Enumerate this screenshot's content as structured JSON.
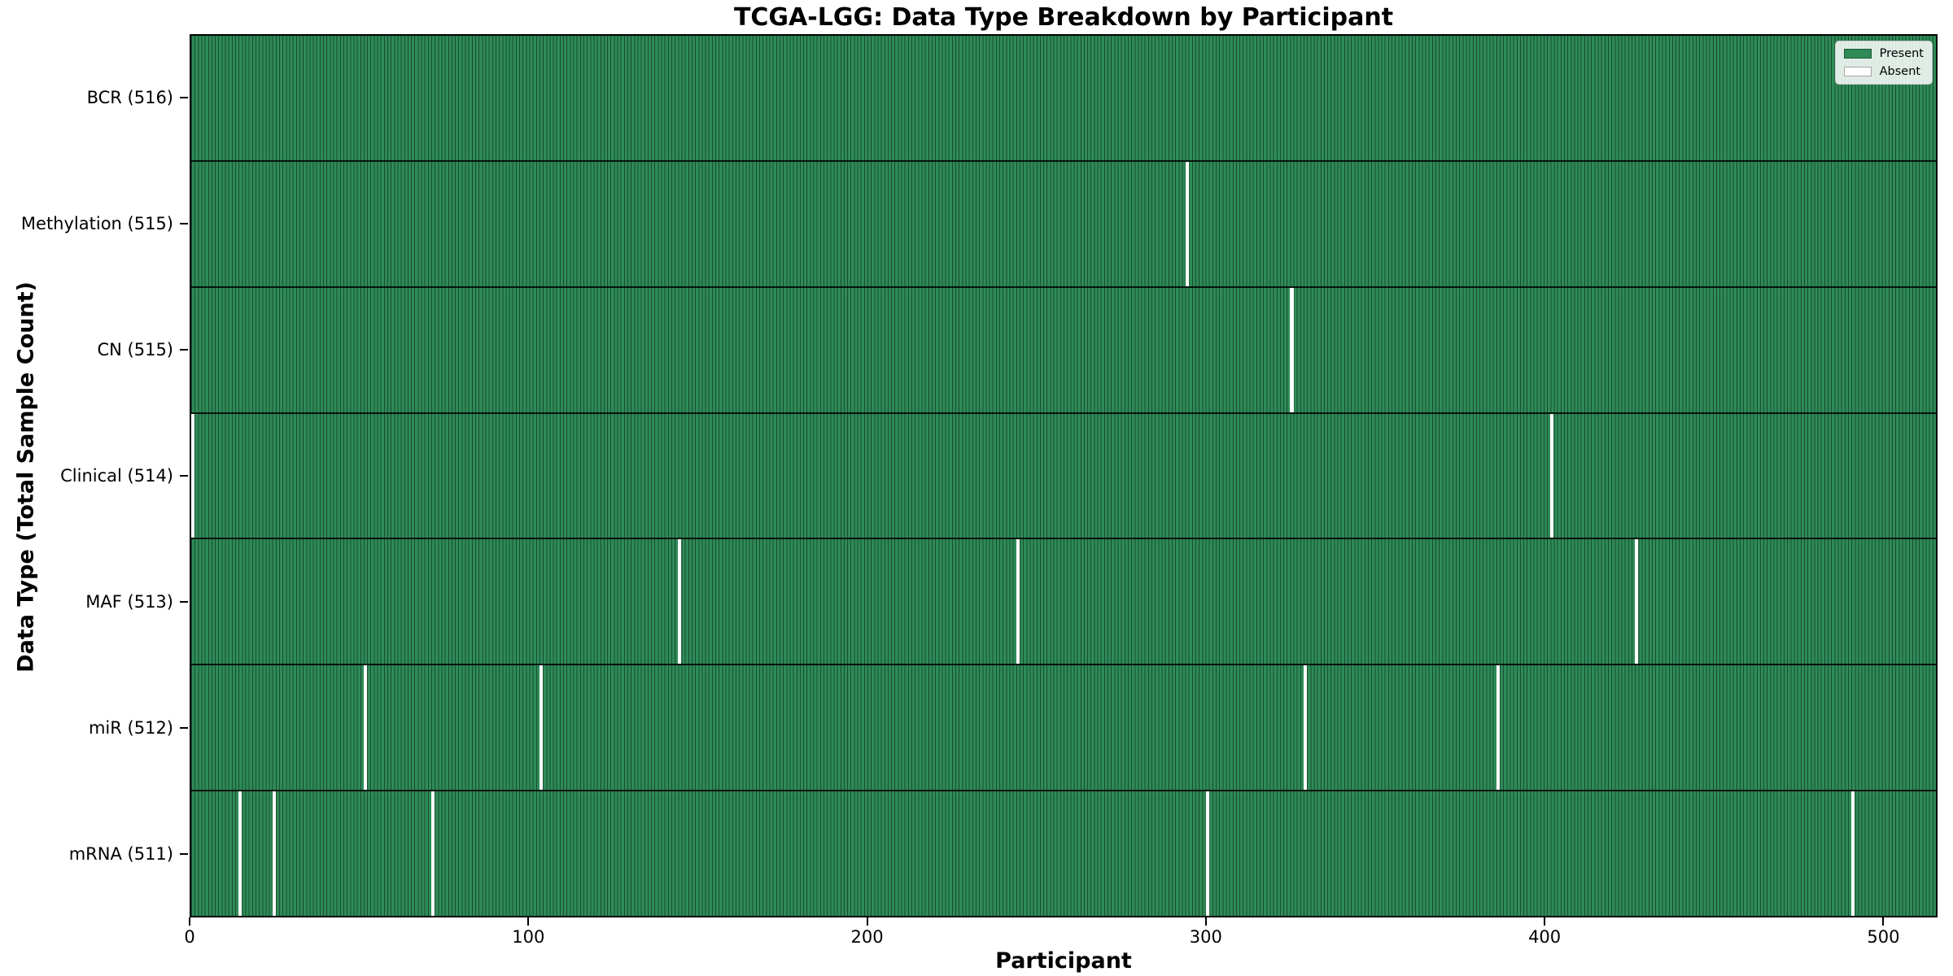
{
  "title": "TCGA-LGG: Data Type Breakdown by Participant",
  "chart_data": {
    "type": "heatmap",
    "title": "TCGA-LGG: Data Type Breakdown by Participant",
    "xlabel": "Participant",
    "ylabel": "Data Type (Total Sample Count)",
    "n_participants": 516,
    "x_ticks": [
      0,
      100,
      200,
      300,
      400,
      500
    ],
    "grid": false,
    "legend": {
      "position": "upper right",
      "entries": [
        {
          "label": "Present",
          "color": "#2e8b57"
        },
        {
          "label": "Absent",
          "color": "#ffffff"
        }
      ]
    },
    "colors": {
      "present": "#2e8b57",
      "absent": "#ffffff",
      "bar_edge": "rgba(0,0,0,0.45)"
    },
    "rows": [
      {
        "label": "BCR (516)",
        "data_type": "BCR",
        "present_count": 516,
        "absent_participants": []
      },
      {
        "label": "Methylation (515)",
        "data_type": "Methylation",
        "present_count": 515,
        "absent_participants": [
          294
        ]
      },
      {
        "label": "CN (515)",
        "data_type": "CN",
        "present_count": 515,
        "absent_participants": [
          325
        ]
      },
      {
        "label": "Clinical (514)",
        "data_type": "Clinical",
        "present_count": 514,
        "absent_participants": [
          0,
          402
        ]
      },
      {
        "label": "MAF (513)",
        "data_type": "MAF",
        "present_count": 513,
        "absent_participants": [
          144,
          244,
          427
        ]
      },
      {
        "label": "miR (512)",
        "data_type": "miR",
        "present_count": 512,
        "absent_participants": [
          51,
          103,
          329,
          386
        ]
      },
      {
        "label": "mRNA (511)",
        "data_type": "mRNA",
        "present_count": 511,
        "absent_participants": [
          14,
          24,
          71,
          300,
          491
        ]
      }
    ]
  }
}
